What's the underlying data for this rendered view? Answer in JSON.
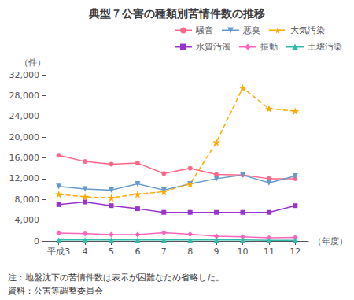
{
  "chart_data": {
    "type": "line",
    "title": "典型７公害の種類別苦情件数の推移",
    "xlabel": "（年度）",
    "ylabel": "（件）",
    "annotations": [
      "注：地盤沈下の苦情件数は表示が困難なため省略した。",
      "資料：公害等調整委員会"
    ],
    "x": [
      3,
      4,
      5,
      6,
      7,
      8,
      9,
      10,
      11,
      12
    ],
    "xlim": [
      2.5,
      12.5
    ],
    "xticks": [
      {
        "value": 3,
        "label": "平成3"
      },
      4,
      5,
      6,
      7,
      8,
      9,
      10,
      11,
      12
    ],
    "ylim": [
      0,
      32000
    ],
    "yticks": [
      0,
      {
        "value": 4000,
        "label": "4,000"
      },
      {
        "value": 8000,
        "label": "8,000"
      },
      {
        "value": 12000,
        "label": "12,000"
      },
      {
        "value": 16000,
        "label": "16,000"
      },
      {
        "value": 20000,
        "label": "20,000"
      },
      {
        "value": 24000,
        "label": "24,000"
      },
      {
        "value": 28000,
        "label": "28,000"
      },
      {
        "value": 32000,
        "label": "32,000"
      }
    ],
    "grid": false,
    "legend": "upper right",
    "series": [
      {
        "name": "騒音",
        "color": "#FF6688",
        "marker": "circle",
        "line_style": "solid",
        "values": [
          16500,
          15300,
          14800,
          15000,
          13000,
          14000,
          12800,
          12700,
          12000,
          12000
        ]
      },
      {
        "name": "悪臭",
        "color": "#6699CC",
        "marker": "triangle-down",
        "line_style": "solid",
        "values": [
          10500,
          10000,
          9800,
          11000,
          9800,
          11000,
          12000,
          12700,
          11200,
          12500
        ]
      },
      {
        "name": "大気汚染",
        "color": "#FFAA00",
        "marker": "star",
        "line_style": "dashed",
        "values": [
          9000,
          8500,
          8300,
          9000,
          9500,
          11000,
          19000,
          29500,
          25500,
          25000
        ]
      },
      {
        "name": "水質汚濁",
        "color": "#9933CC",
        "marker": "square",
        "line_style": "solid",
        "values": [
          7000,
          7500,
          6800,
          6200,
          5500,
          5500,
          5500,
          5500,
          5500,
          6800
        ]
      },
      {
        "name": "振動",
        "color": "#FF66BB",
        "marker": "diamond",
        "line_style": "solid",
        "values": [
          1500,
          1400,
          1200,
          1200,
          1600,
          1300,
          900,
          800,
          600,
          700
        ]
      },
      {
        "name": "土壌汚染",
        "color": "#33BBAA",
        "marker": "triangle",
        "line_style": "solid",
        "values": [
          200,
          200,
          200,
          200,
          200,
          200,
          200,
          200,
          100,
          100
        ]
      }
    ]
  }
}
